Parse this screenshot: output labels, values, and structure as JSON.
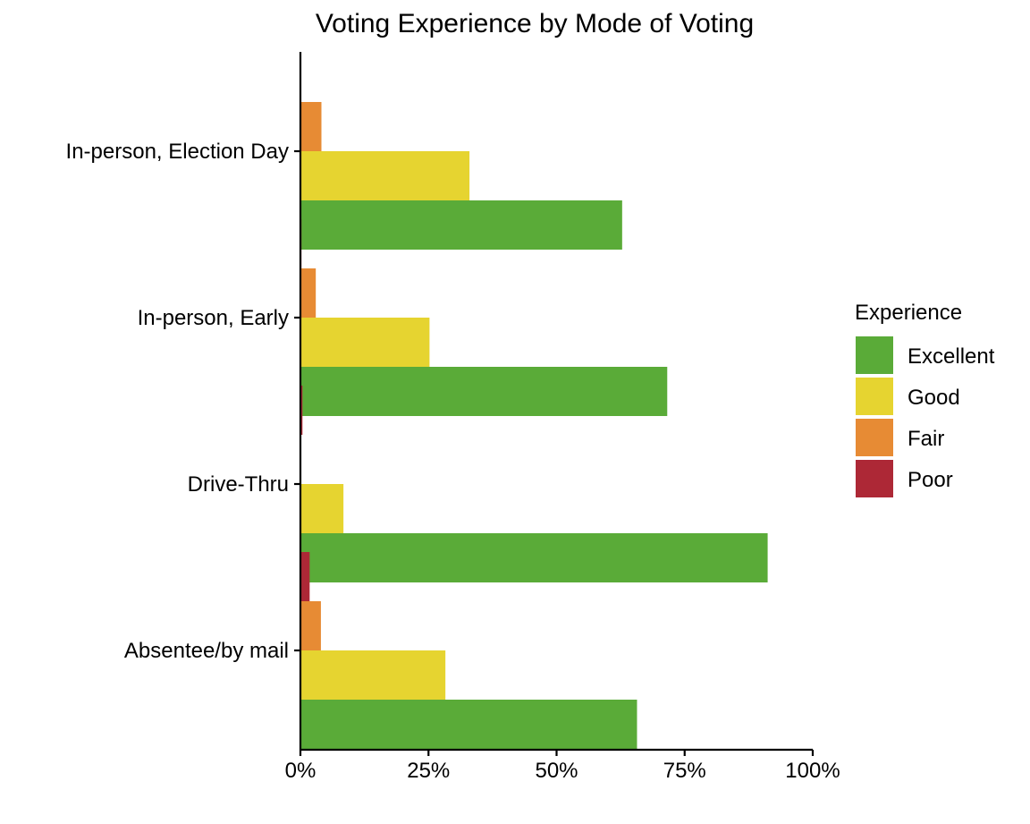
{
  "chart_data": {
    "type": "bar",
    "orientation": "horizontal",
    "title": "Voting Experience by Mode of Voting",
    "xlabel": "",
    "ylabel": "",
    "categories": [
      "In-person, Election Day",
      "In-person, Early",
      "Drive-Thru",
      "Absentee/by mail"
    ],
    "x_ticks": [
      "0%",
      "25%",
      "50%",
      "75%",
      "100%"
    ],
    "xlim": [
      0,
      100
    ],
    "value_unit": "%",
    "legend_title": "Experience",
    "legend_position": "right",
    "grid": false,
    "series": [
      {
        "name": "Excellent",
        "color": "#5aab38",
        "values": [
          62.8,
          71.6,
          91.2,
          65.7
        ]
      },
      {
        "name": "Good",
        "color": "#e6d430",
        "values": [
          33.0,
          25.2,
          8.4,
          28.3
        ]
      },
      {
        "name": "Fair",
        "color": "#e78b34",
        "values": [
          4.1,
          3.0,
          0.0,
          4.0
        ]
      },
      {
        "name": "Poor",
        "color": "#ad2836",
        "values": [
          0.1,
          0.2,
          0.4,
          1.8
        ]
      }
    ]
  }
}
